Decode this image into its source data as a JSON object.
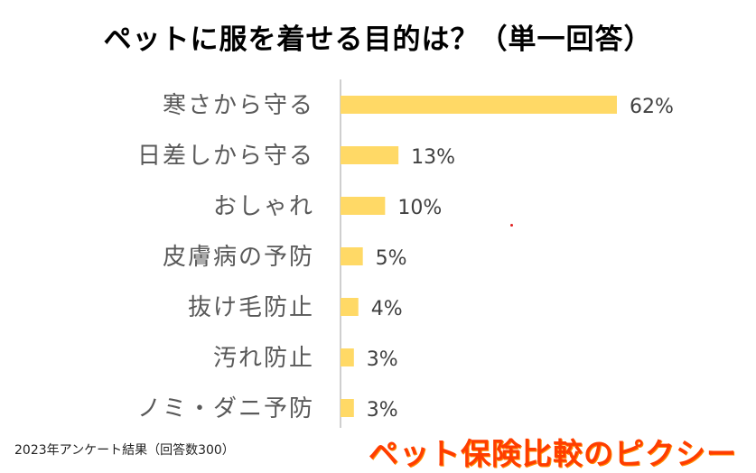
{
  "title": "ペットに服を着せる目的は？（単一回答）",
  "footnote": "2023年アンケート結果（回答数300）",
  "brand": "ペット保険比較のピクシー",
  "colors": {
    "bar": "#FFD966",
    "axis": "#BFBFBF",
    "brand": "#FF3D00"
  },
  "chart_data": {
    "type": "bar",
    "orientation": "horizontal",
    "categories": [
      "寒さから守る",
      "日差しから守る",
      "おしゃれ",
      "皮膚病の予防",
      "抜け毛防止",
      "汚れ防止",
      "ノミ・ダニ予防"
    ],
    "values": [
      62,
      13,
      10,
      5,
      4,
      3,
      3
    ],
    "data_labels": [
      "62%",
      "13%",
      "10%",
      "5%",
      "4%",
      "3%",
      "3%"
    ],
    "unit": "%",
    "grid": false,
    "legend": "none"
  }
}
